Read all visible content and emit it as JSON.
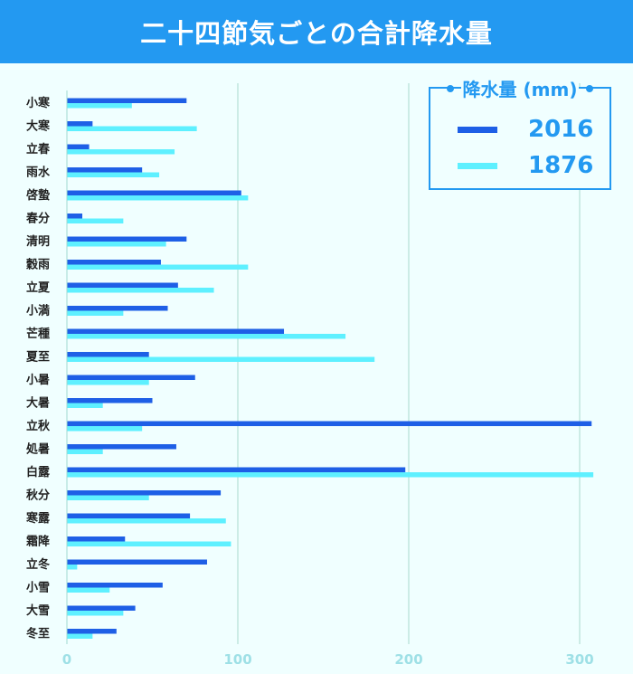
{
  "header": {
    "title": "二十四節気ごとの合計降水量"
  },
  "colors": {
    "header_bg": "#2399f1",
    "series_2016": "#1e5fe6",
    "series_1876": "#5ef0ff",
    "grid": "#a8d8cc",
    "tick": "#9ee0e6"
  },
  "chart_data": {
    "type": "bar",
    "orientation": "horizontal",
    "title": "二十四節気ごとの合計降水量",
    "legend_title": "降水量 (mm)",
    "legend_position": "top-right",
    "categories": [
      "小寒",
      "大寒",
      "立春",
      "雨水",
      "啓蟄",
      "春分",
      "清明",
      "穀雨",
      "立夏",
      "小満",
      "芒種",
      "夏至",
      "小暑",
      "大暑",
      "立秋",
      "処暑",
      "白露",
      "秋分",
      "寒露",
      "霜降",
      "立冬",
      "小雪",
      "大雪",
      "冬至"
    ],
    "series": [
      {
        "name": "2016",
        "values": [
          70,
          15,
          13,
          44,
          102,
          9,
          70,
          55,
          65,
          59,
          127,
          48,
          75,
          50,
          307,
          64,
          198,
          90,
          72,
          34,
          82,
          56,
          40,
          29
        ]
      },
      {
        "name": "1876",
        "values": [
          38,
          76,
          63,
          54,
          106,
          33,
          58,
          106,
          86,
          33,
          163,
          180,
          48,
          21,
          44,
          21,
          308,
          48,
          93,
          96,
          6,
          25,
          33,
          15
        ]
      }
    ],
    "xlim": [
      0,
      330
    ],
    "xticks": [
      0,
      100,
      200,
      300
    ],
    "grid": true
  }
}
